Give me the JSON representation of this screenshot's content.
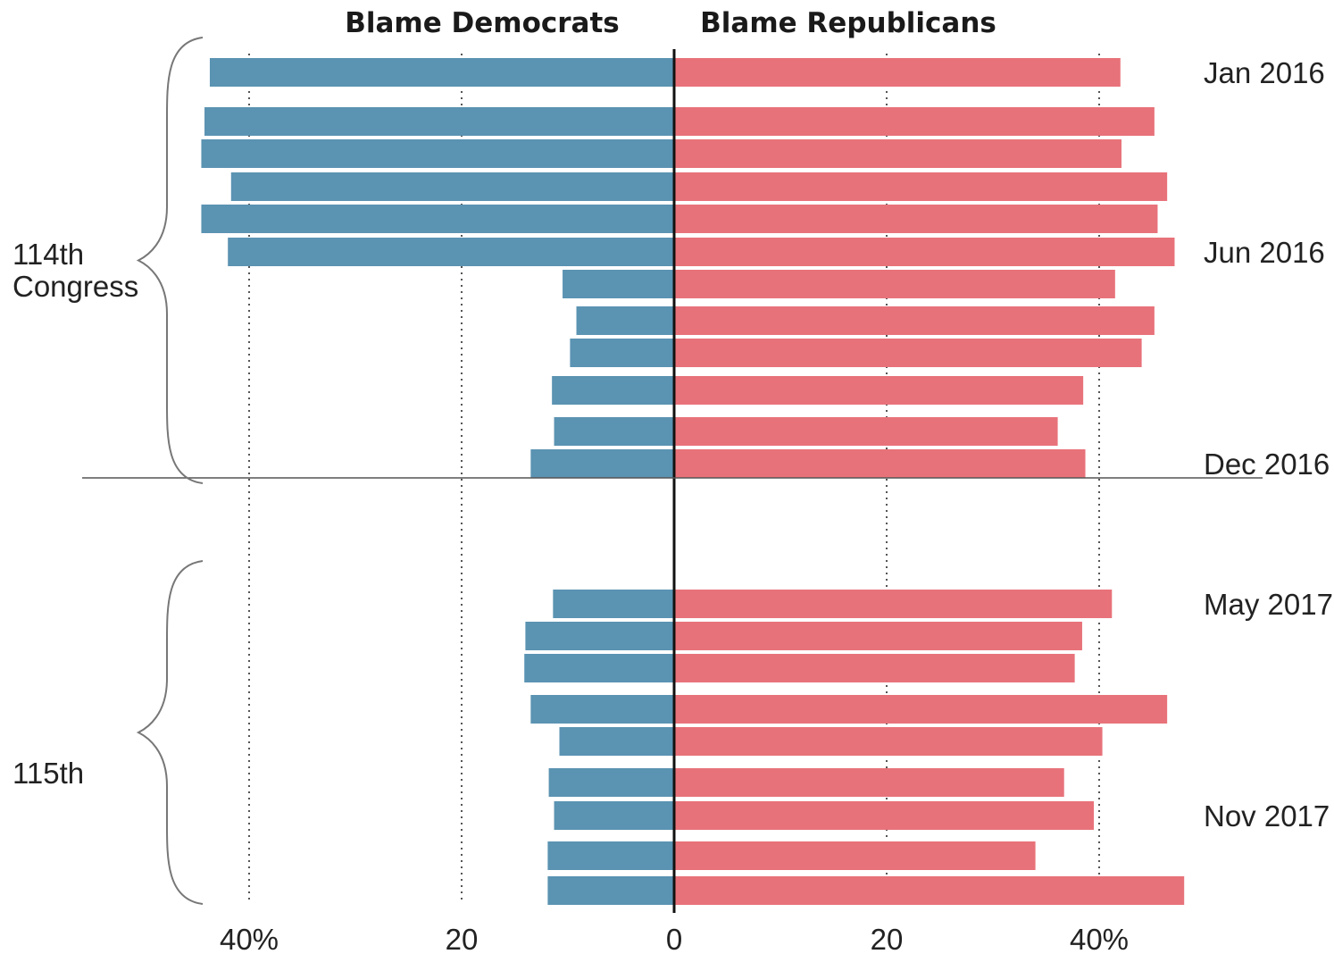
{
  "chart_data": {
    "type": "bar",
    "orientation": "diverging-horizontal",
    "headers": {
      "left": "Blame Democrats",
      "right": "Blame Republicans"
    },
    "series": [
      {
        "name": "Blame Democrats",
        "color": "#5b93b2"
      },
      {
        "name": "Blame Republicans",
        "color": "#e8727a"
      }
    ],
    "xlim": [
      0,
      50
    ],
    "ticks": [
      {
        "value": 40,
        "label": "40%",
        "side": "left"
      },
      {
        "value": 20,
        "label": "20",
        "side": "left"
      },
      {
        "value": 0,
        "label": "0",
        "side": "center"
      },
      {
        "value": 20,
        "label": "20",
        "side": "right"
      },
      {
        "value": 40,
        "label": "40%",
        "side": "right"
      }
    ],
    "grid": true,
    "groups": [
      {
        "label_lines": [
          "114th",
          "Congress"
        ],
        "date_labels": [
          "Jan 2016",
          "Jun 2016",
          "Dec 2016"
        ],
        "rows": [
          {
            "dem": 43.7,
            "rep": 42.0
          },
          {
            "dem": 44.2,
            "rep": 45.2
          },
          {
            "dem": 44.5,
            "rep": 42.1
          },
          {
            "dem": 41.7,
            "rep": 46.4
          },
          {
            "dem": 44.5,
            "rep": 45.5
          },
          {
            "dem": 42.0,
            "rep": 47.1
          },
          {
            "dem": 10.5,
            "rep": 41.5
          },
          {
            "dem": 9.2,
            "rep": 45.2
          },
          {
            "dem": 9.8,
            "rep": 44.0
          },
          {
            "dem": 11.5,
            "rep": 38.5
          },
          {
            "dem": 11.3,
            "rep": 36.1
          },
          {
            "dem": 13.5,
            "rep": 38.7
          }
        ]
      },
      {
        "label_lines": [
          "115th"
        ],
        "date_labels": [
          "May 2017",
          "Nov 2017"
        ],
        "rows": [
          {
            "dem": 11.4,
            "rep": 41.2
          },
          {
            "dem": 14.0,
            "rep": 38.4
          },
          {
            "dem": 14.1,
            "rep": 37.7
          },
          {
            "dem": 13.5,
            "rep": 46.4
          },
          {
            "dem": 10.8,
            "rep": 40.3
          },
          {
            "dem": 11.8,
            "rep": 36.7
          },
          {
            "dem": 11.3,
            "rep": 39.5
          },
          {
            "dem": 11.9,
            "rep": 34.0
          },
          {
            "dem": 11.9,
            "rep": 48.0
          }
        ]
      }
    ]
  }
}
